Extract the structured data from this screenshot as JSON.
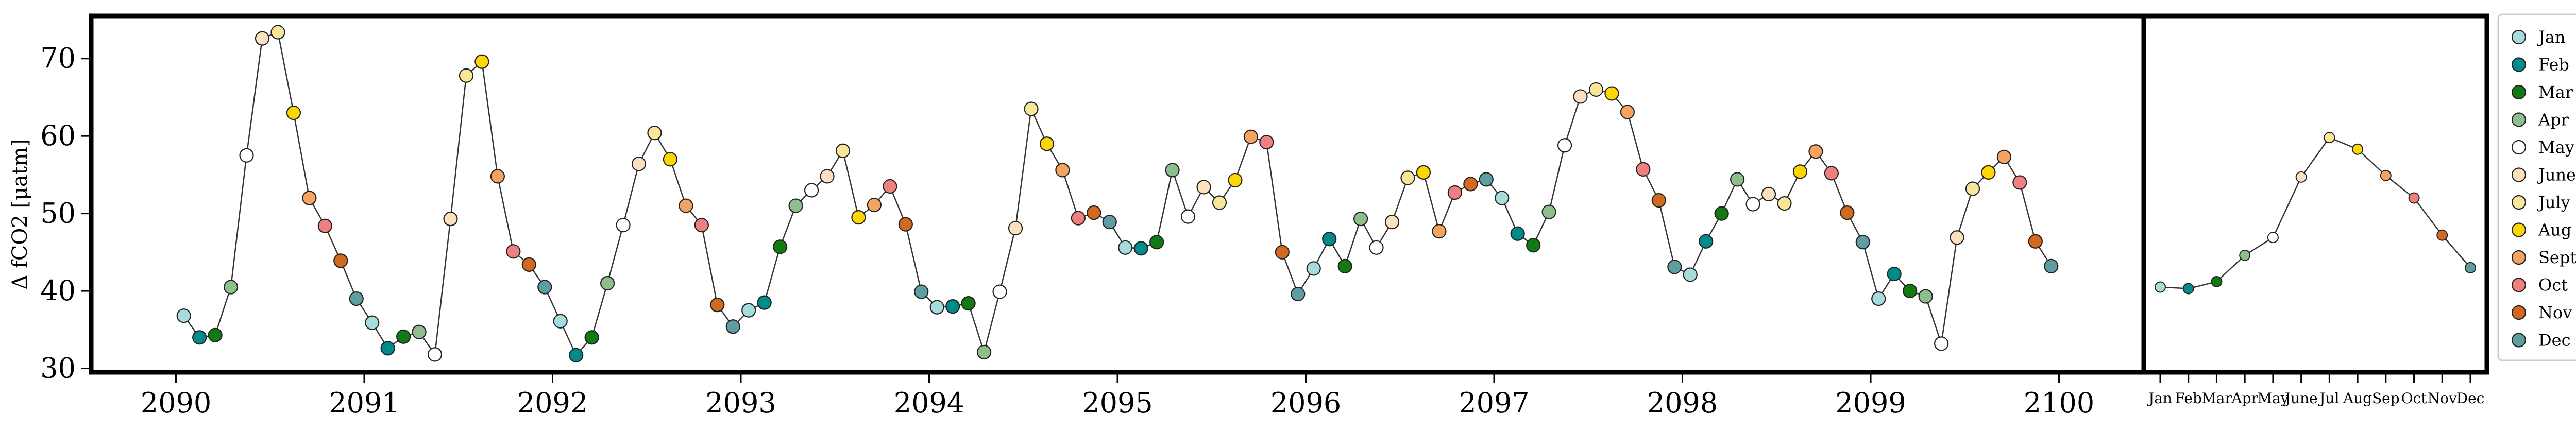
{
  "chart_data": [
    {
      "type": "line",
      "panel": "main",
      "title": "",
      "xlabel": "",
      "ylabel": "Δ fCO2 [μatm]",
      "xlim": [
        2089.55,
        2100.45
      ],
      "ylim": [
        29.5,
        75.5
      ],
      "x_ticks": [
        2090,
        2091,
        2092,
        2093,
        2094,
        2095,
        2096,
        2097,
        2098,
        2099,
        2100
      ],
      "x_tick_labels": [
        "2090",
        "2091",
        "2092",
        "2093",
        "2094",
        "2095",
        "2096",
        "2097",
        "2098",
        "2099",
        "2100"
      ],
      "y_ticks": [
        30,
        40,
        50,
        60,
        70
      ],
      "y_tick_labels": [
        "30",
        "40",
        "50",
        "60",
        "70"
      ],
      "grid": false,
      "line_color": "#333333",
      "marker_color_by_month": true,
      "values": [
        36.8,
        34.0,
        34.3,
        40.5,
        57.5,
        72.6,
        73.4,
        63.0,
        52.0,
        48.4,
        43.9,
        39.0,
        35.9,
        32.6,
        34.1,
        34.7,
        31.8,
        49.3,
        67.8,
        69.6,
        54.8,
        45.1,
        43.4,
        40.5,
        36.1,
        31.7,
        34.0,
        41.0,
        48.5,
        56.4,
        60.4,
        57.0,
        51.0,
        48.5,
        38.2,
        35.4,
        37.5,
        38.5,
        45.7,
        51.0,
        53.0,
        54.8,
        58.1,
        49.5,
        51.1,
        53.5,
        48.6,
        39.9,
        37.9,
        38.0,
        38.4,
        32.1,
        39.9,
        48.1,
        63.5,
        59.0,
        55.6,
        49.4,
        50.1,
        48.9,
        45.6,
        45.5,
        46.3,
        55.6,
        49.6,
        53.4,
        51.4,
        54.3,
        59.9,
        59.2,
        45.0,
        39.6,
        42.9,
        46.7,
        43.2,
        49.3,
        45.6,
        48.9,
        54.6,
        55.3,
        47.7,
        52.7,
        53.8,
        54.4,
        52.0,
        47.4,
        45.9,
        50.2,
        58.8,
        65.1,
        66.0,
        65.5,
        63.1,
        55.7,
        51.7,
        43.1,
        42.1,
        46.4,
        50.0,
        54.4,
        51.2,
        52.5,
        51.3,
        55.4,
        58.0,
        55.2,
        50.1,
        46.3,
        39.0,
        42.2,
        40.0,
        39.3,
        33.2,
        46.9,
        53.2,
        55.3,
        57.3,
        54.0,
        46.4,
        43.2
      ],
      "start_year": 2090
    },
    {
      "type": "line",
      "panel": "climatology",
      "title": "",
      "xlabel": "",
      "ylabel": "",
      "categories": [
        "Jan",
        "Feb",
        "Mar",
        "Apr",
        "May",
        "June",
        "Jul",
        "Aug",
        "Sep",
        "Oct",
        "Nov",
        "Dec"
      ],
      "values": [
        40.5,
        40.3,
        41.2,
        44.6,
        46.9,
        54.7,
        59.8,
        58.3,
        54.9,
        52.0,
        47.2,
        43.0
      ],
      "ylim": [
        29.5,
        75.5
      ],
      "grid": false,
      "legend": {
        "placement": "right",
        "entries": [
          "Jan",
          "Feb",
          "Mar",
          "Apr",
          "May",
          "June",
          "July",
          "Aug",
          "Sept",
          "Oct",
          "Nov",
          "Dec"
        ],
        "colors": [
          "#a8dcdc",
          "#008b8b",
          "#117a11",
          "#8cbf8c",
          "#ffffff",
          "#fde0c0",
          "#f6e79a",
          "#ffd700",
          "#f4a460",
          "#f08080",
          "#d2691e",
          "#5f9ea0"
        ]
      }
    }
  ]
}
